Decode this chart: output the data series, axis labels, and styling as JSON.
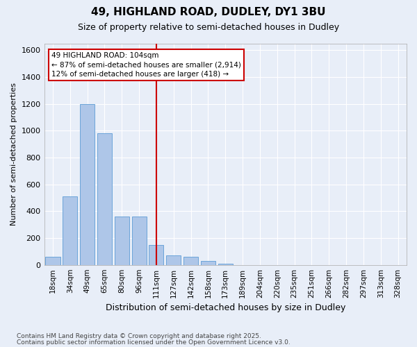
{
  "title_line1": "49, HIGHLAND ROAD, DUDLEY, DY1 3BU",
  "title_line2": "Size of property relative to semi-detached houses in Dudley",
  "xlabel": "Distribution of semi-detached houses by size in Dudley",
  "ylabel": "Number of semi-detached properties",
  "categories": [
    "18sqm",
    "34sqm",
    "49sqm",
    "65sqm",
    "80sqm",
    "96sqm",
    "111sqm",
    "127sqm",
    "142sqm",
    "158sqm",
    "173sqm",
    "189sqm",
    "204sqm",
    "220sqm",
    "235sqm",
    "251sqm",
    "266sqm",
    "282sqm",
    "297sqm",
    "313sqm",
    "328sqm"
  ],
  "bar_values": [
    60,
    510,
    1200,
    980,
    360,
    360,
    150,
    70,
    60,
    30,
    10,
    0,
    0,
    0,
    0,
    0,
    0,
    0,
    0,
    0,
    0
  ],
  "bar_color": "#aec6e8",
  "bar_edge_color": "#5b9bd5",
  "vline_x": 6.0,
  "vline_color": "#cc0000",
  "annotation_text": "49 HIGHLAND ROAD: 104sqm\n← 87% of semi-detached houses are smaller (2,914)\n12% of semi-detached houses are larger (418) →",
  "annotation_box_color": "#ffffff",
  "annotation_box_edge": "#cc0000",
  "ylim": [
    0,
    1650
  ],
  "yticks": [
    0,
    200,
    400,
    600,
    800,
    1000,
    1200,
    1400,
    1600
  ],
  "footer_line1": "Contains HM Land Registry data © Crown copyright and database right 2025.",
  "footer_line2": "Contains public sector information licensed under the Open Government Licence v3.0.",
  "bg_color": "#e8eef8",
  "grid_color": "#ffffff",
  "bar_width": 0.85
}
